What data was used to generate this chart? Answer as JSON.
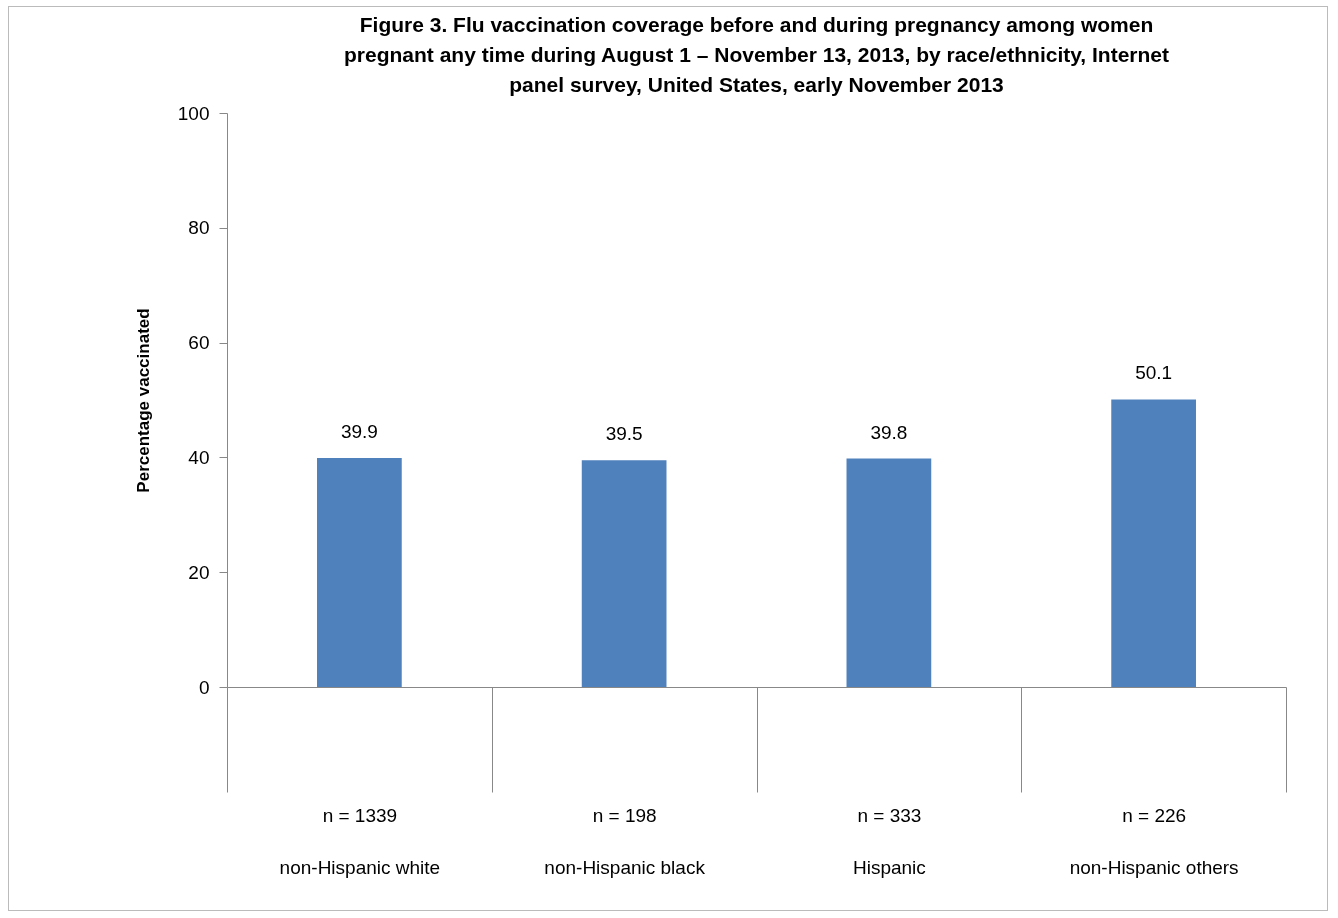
{
  "chart_data": {
    "type": "bar",
    "title": "Figure 3. Flu vaccination coverage before and during pregnancy among women\npregnant any time during August 1 – November 13, 2013,  by race/ethnicity, Internet\npanel survey, United States, early November 2013",
    "ylabel": "Percentage vaccinated",
    "categories": [
      "n = 1339\nnon-Hispanic white",
      "n = 198\nnon-Hispanic black",
      "n = 333\nHispanic",
      "n = 226\nnon-Hispanic others"
    ],
    "values": [
      39.9,
      39.5,
      39.8,
      50.1
    ],
    "color": "#4f81bd",
    "ylim": [
      0,
      100
    ],
    "yticks": [
      0,
      20,
      40,
      60,
      80,
      100
    ],
    "data_labels": true,
    "grid": false
  }
}
